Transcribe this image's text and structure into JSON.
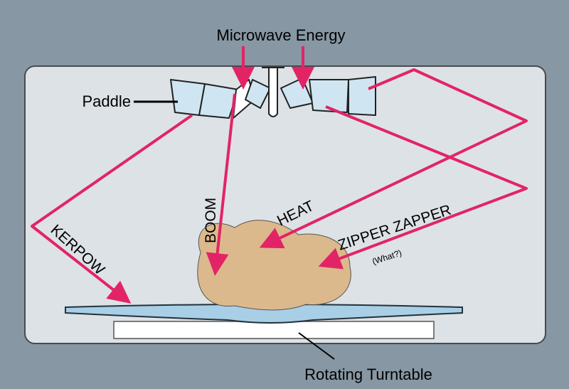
{
  "diagram": {
    "title": "Microwave Energy",
    "labels": {
      "paddle": "Paddle",
      "turntable": "Rotating Turntable",
      "boom": "BOOM",
      "heat": "HEAT",
      "zipper": "ZIPPER ZAPPER",
      "what": "(What?)",
      "kerpow": "KERPOW"
    },
    "colors": {
      "background": "#8797a3",
      "cavity": "#dde2e6",
      "ray": "#e22466",
      "food": "#dcb98c",
      "paddle": "#cfe6f2",
      "plate": "#a9cfe6",
      "turntable_base": "#ffffff"
    }
  }
}
